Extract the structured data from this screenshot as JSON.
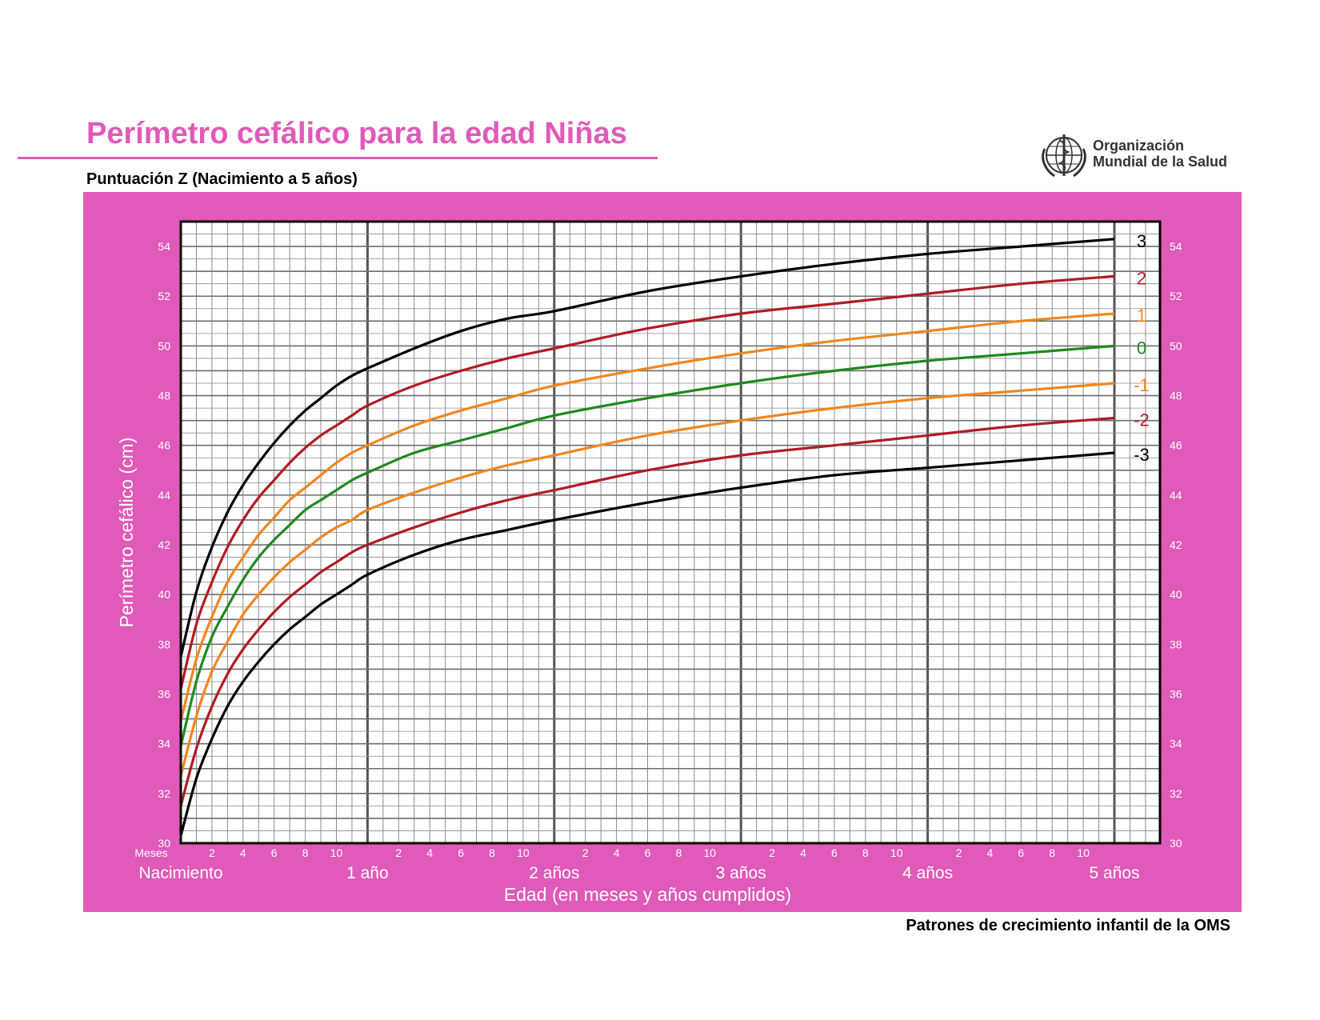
{
  "header": {
    "title": "Perímetro cefálico para la edad  Niñas",
    "subtitle": "Puntuación Z (Nacimiento a 5 años)",
    "org_line1": "Organización",
    "org_line2": "Mundial de la Salud"
  },
  "footer": {
    "text": "Patrones de crecimiento infantil de la OMS"
  },
  "colors": {
    "panel": "#e05ab9",
    "grid_minor": "#8c8c8c",
    "grid_major": "#555555",
    "z3": "#000000",
    "z2": "#b01c24",
    "z1": "#f0861f",
    "z0": "#1e8a1e"
  },
  "chart_data": {
    "type": "line",
    "ylabel": "Perímetro cefálico (cm)",
    "xlabel": "Edad (en meses y años cumplidos)",
    "x_unit_label": "Meses",
    "xlim": [
      0,
      60
    ],
    "ylim": [
      30,
      55
    ],
    "grid": true,
    "y_ticks": [
      30,
      32,
      34,
      36,
      38,
      40,
      42,
      44,
      46,
      48,
      50,
      52,
      54
    ],
    "month_ticks": [
      "2",
      "4",
      "6",
      "8",
      "10"
    ],
    "year_labels": [
      {
        "month": 0,
        "label": "Nacimiento"
      },
      {
        "month": 12,
        "label": "1 año"
      },
      {
        "month": 24,
        "label": "2 años"
      },
      {
        "month": 36,
        "label": "3 años"
      },
      {
        "month": 48,
        "label": "4 años"
      },
      {
        "month": 60,
        "label": "5 años"
      }
    ],
    "x": [
      0,
      1,
      2,
      3,
      4,
      5,
      6,
      7,
      8,
      9,
      10,
      11,
      12,
      15,
      18,
      21,
      24,
      30,
      36,
      42,
      48,
      54,
      60
    ],
    "series": [
      {
        "name": "3",
        "color_key": "z3",
        "values": [
          37.5,
          40.1,
          41.9,
          43.3,
          44.4,
          45.3,
          46.1,
          46.8,
          47.4,
          47.9,
          48.4,
          48.8,
          49.1,
          49.9,
          50.6,
          51.1,
          51.4,
          52.2,
          52.8,
          53.3,
          53.7,
          54.0,
          54.3
        ]
      },
      {
        "name": "2",
        "color_key": "z2",
        "values": [
          36.2,
          38.8,
          40.5,
          41.9,
          43.0,
          43.9,
          44.6,
          45.3,
          45.9,
          46.4,
          46.8,
          47.2,
          47.6,
          48.4,
          49.0,
          49.5,
          49.9,
          50.7,
          51.3,
          51.7,
          52.1,
          52.5,
          52.8
        ]
      },
      {
        "name": "1",
        "color_key": "z1",
        "values": [
          34.9,
          37.4,
          39.1,
          40.5,
          41.5,
          42.4,
          43.1,
          43.8,
          44.3,
          44.8,
          45.3,
          45.7,
          46.0,
          46.8,
          47.4,
          47.9,
          48.4,
          49.1,
          49.7,
          50.2,
          50.6,
          51.0,
          51.3
        ]
      },
      {
        "name": "0",
        "color_key": "z0",
        "values": [
          33.9,
          36.5,
          38.3,
          39.5,
          40.6,
          41.5,
          42.2,
          42.8,
          43.4,
          43.8,
          44.2,
          44.6,
          44.9,
          45.7,
          46.2,
          46.7,
          47.2,
          47.9,
          48.5,
          49.0,
          49.4,
          49.7,
          50.0
        ]
      },
      {
        "name": "-1",
        "color_key": "z1",
        "values": [
          32.7,
          35.1,
          36.9,
          38.1,
          39.2,
          40.0,
          40.7,
          41.3,
          41.8,
          42.3,
          42.7,
          43.0,
          43.4,
          44.1,
          44.7,
          45.2,
          45.6,
          46.4,
          47.0,
          47.5,
          47.9,
          48.2,
          48.5
        ]
      },
      {
        "name": "-2",
        "color_key": "z2",
        "values": [
          31.5,
          33.8,
          35.5,
          36.8,
          37.8,
          38.6,
          39.3,
          39.9,
          40.4,
          40.9,
          41.3,
          41.7,
          42.0,
          42.7,
          43.3,
          43.8,
          44.2,
          45.0,
          45.6,
          46.0,
          46.4,
          46.8,
          47.1
        ]
      },
      {
        "name": "-3",
        "color_key": "z3",
        "values": [
          30.3,
          32.6,
          34.2,
          35.5,
          36.5,
          37.3,
          38.0,
          38.6,
          39.1,
          39.6,
          40.0,
          40.4,
          40.8,
          41.6,
          42.2,
          42.6,
          43.0,
          43.7,
          44.3,
          44.8,
          45.1,
          45.4,
          45.7
        ]
      }
    ]
  }
}
